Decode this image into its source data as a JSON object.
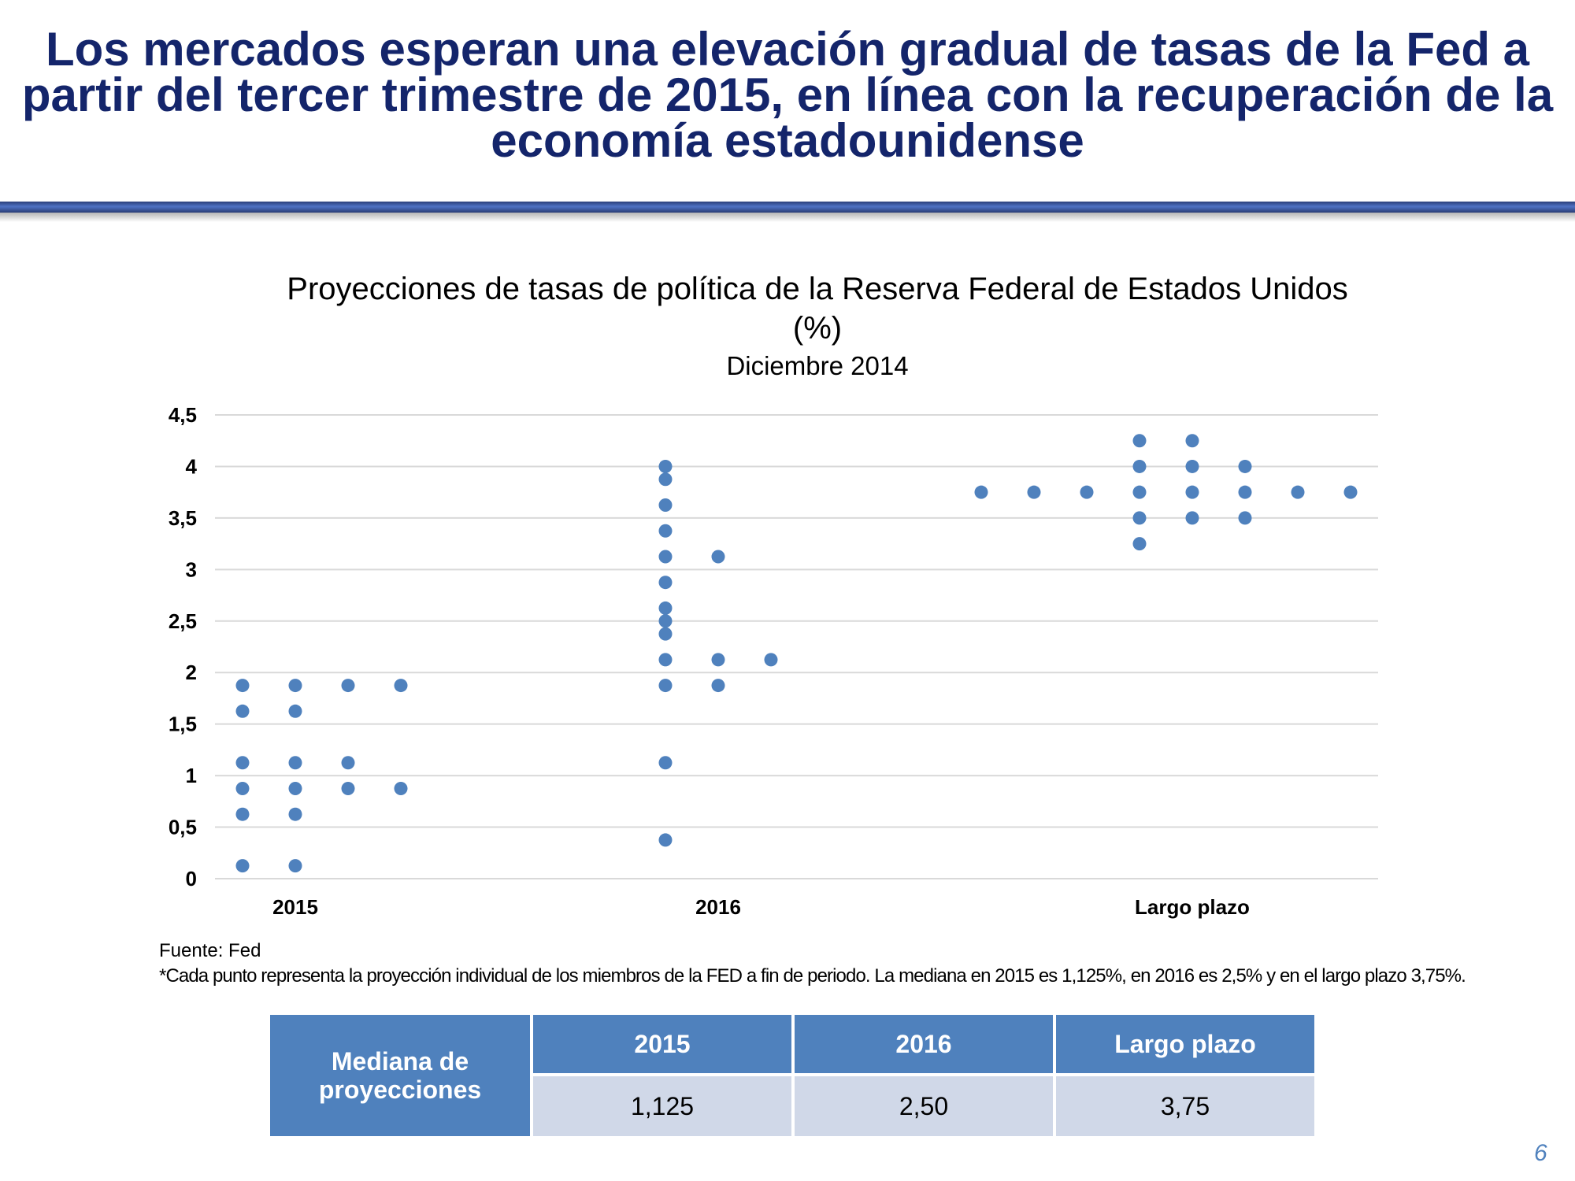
{
  "slide": {
    "title": "Los mercados esperan una elevación gradual de tasas de la Fed a partir del tercer trimestre de 2015, en línea con la recuperación de la economía estadounidense",
    "page_number": "6"
  },
  "chart_data": {
    "type": "scatter",
    "title": "Proyecciones de tasas de política de la Reserva Federal de Estados Unidos (%)",
    "subtitle": "Diciembre 2014",
    "ylim": [
      0,
      4.5
    ],
    "y_ticks": [
      "0",
      "0,5",
      "1",
      "1,5",
      "2",
      "2,5",
      "3",
      "3,5",
      "4",
      "4,5"
    ],
    "grid": true,
    "categories": [
      "2015",
      "2016",
      "Largo plazo"
    ],
    "points": [
      {
        "category": "2015",
        "values": [
          1.875,
          1.875,
          1.875,
          1.875,
          1.625,
          1.625,
          1.125,
          1.125,
          1.125,
          0.875,
          0.875,
          0.875,
          0.875,
          0.625,
          0.625,
          0.125,
          0.125
        ]
      },
      {
        "category": "2016",
        "values": [
          4.0,
          3.875,
          3.625,
          3.375,
          3.125,
          3.125,
          2.875,
          2.625,
          2.5,
          2.375,
          2.125,
          2.125,
          2.125,
          1.875,
          1.875,
          1.125,
          0.375
        ]
      },
      {
        "category": "Largo plazo",
        "values": [
          4.25,
          4.25,
          4.0,
          4.0,
          4.0,
          3.75,
          3.75,
          3.75,
          3.75,
          3.75,
          3.75,
          3.75,
          3.75,
          3.5,
          3.5,
          3.5,
          3.25
        ]
      }
    ]
  },
  "source": {
    "line1": "Fuente: Fed",
    "line2": "*Cada punto representa la proyección individual de los miembros de la FED a fin de periodo. La mediana  en 2015 es 1,125%, en 2016 es 2,5% y en el largo plazo 3,75%."
  },
  "median_table": {
    "row_header": "Mediana de proyecciones",
    "columns": [
      "2015",
      "2016",
      "Largo plazo"
    ],
    "values": [
      "1,125",
      "2,50",
      "3,75"
    ]
  },
  "colors": {
    "title": "#14256b",
    "dot": "#4f81bd",
    "table_header": "#4f81bd",
    "table_value": "#d0d8e8",
    "grid": "#d9d9d9"
  }
}
